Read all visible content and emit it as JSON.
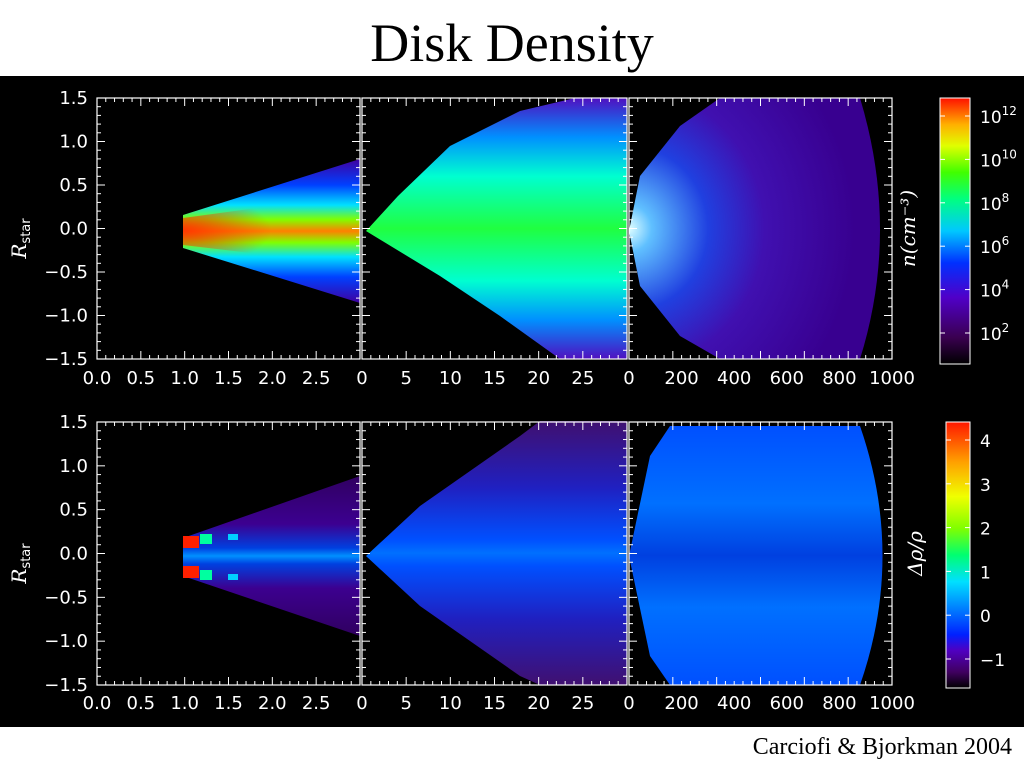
{
  "slide": {
    "title": "Disk Density",
    "credit": "Carciofi & Bjorkman 2004"
  },
  "chart_data": [
    {
      "type": "heatmap",
      "panels": [
        {
          "xlim": [
            0,
            3
          ],
          "xticks": [
            "0.0",
            "0.5",
            "1.0",
            "1.5",
            "2.0",
            "2.5"
          ]
        },
        {
          "xlim": [
            0,
            30
          ],
          "xticks": [
            "0",
            "5",
            "10",
            "15",
            "20",
            "25"
          ]
        },
        {
          "xlim": [
            0,
            1000
          ],
          "xticks": [
            "0",
            "200",
            "400",
            "600",
            "800",
            "1000"
          ]
        }
      ],
      "ylabel": "R",
      "ylabel_sub": "star",
      "ylim": [
        -1.5,
        1.5
      ],
      "yticks": [
        "1.5",
        "1.0",
        "0.5",
        "0.0",
        "−0.5",
        "−1.0",
        "−1.5"
      ],
      "colorbar": {
        "label": "n(cm⁻³)",
        "ticks": [
          {
            "base": "10",
            "exp": "12"
          },
          {
            "base": "10",
            "exp": "10"
          },
          {
            "base": "10",
            "exp": "8"
          },
          {
            "base": "10",
            "exp": "6"
          },
          {
            "base": "10",
            "exp": "4"
          },
          {
            "base": "10",
            "exp": "2"
          }
        ]
      }
    },
    {
      "type": "heatmap",
      "panels": [
        {
          "xlim": [
            0,
            3
          ],
          "xticks": [
            "0.0",
            "0.5",
            "1.0",
            "1.5",
            "2.0",
            "2.5"
          ]
        },
        {
          "xlim": [
            0,
            30
          ],
          "xticks": [
            "0",
            "5",
            "10",
            "15",
            "20",
            "25"
          ]
        },
        {
          "xlim": [
            0,
            1000
          ],
          "xticks": [
            "0",
            "200",
            "400",
            "600",
            "800",
            "1000"
          ]
        }
      ],
      "ylabel": "R",
      "ylabel_sub": "star",
      "ylim": [
        -1.5,
        1.5
      ],
      "yticks": [
        "1.5",
        "1.0",
        "0.5",
        "0.0",
        "−0.5",
        "−1.0",
        "−1.5"
      ],
      "colorbar": {
        "label": "Δρ/ρ",
        "ticks": [
          "4",
          "3",
          "2",
          "1",
          "0",
          "−1"
        ]
      }
    }
  ],
  "colors": {
    "figure_bg": "#000000",
    "axis": "#ffffff"
  }
}
